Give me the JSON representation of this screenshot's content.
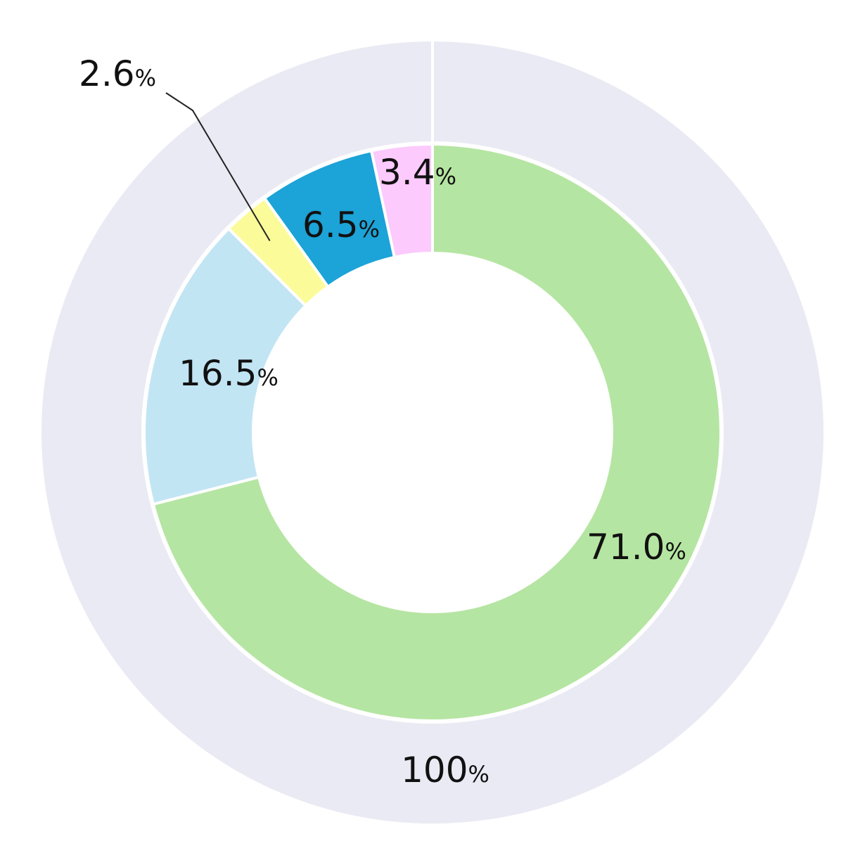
{
  "chart_data": {
    "type": "donut",
    "outer_ring": {
      "label": "100",
      "unit": "%",
      "color": "#eaeaf4"
    },
    "inner_ring": {
      "unit": "%",
      "segments": [
        {
          "value": 71.0,
          "label": "71.0",
          "color": "#b5e5a2"
        },
        {
          "value": 16.5,
          "label": "16.5",
          "color": "#c2e5f4"
        },
        {
          "value": 2.6,
          "label": "2.6",
          "color": "#fbfb9a",
          "callout": true
        },
        {
          "value": 6.5,
          "label": "6.5",
          "color": "#1ca3d7"
        },
        {
          "value": 3.4,
          "label": "3.4",
          "color": "#fccafc"
        }
      ]
    },
    "start_angle": "12 o'clock",
    "direction": "clockwise"
  }
}
